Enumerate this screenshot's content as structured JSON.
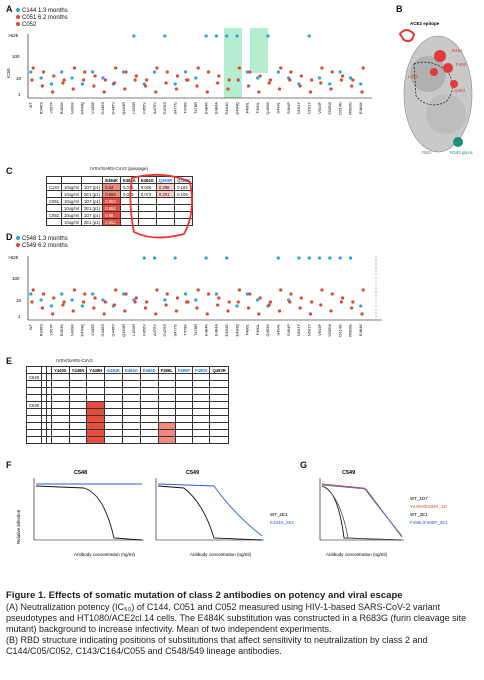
{
  "panels": {
    "A": {
      "letter": "A",
      "legend": [
        {
          "label": "C144",
          "color": "#2aa3e0",
          "note": "1.3 months"
        },
        {
          "label": "C051",
          "color": "#d94a2c",
          "note": "6.2 months"
        },
        {
          "label": "C052",
          "color": "#d94a2c",
          "note": ""
        }
      ],
      "y_ticks": [
        ">625",
        "100",
        "10",
        "1"
      ],
      "ylabel": "IC50"
    },
    "B": {
      "letter": "B",
      "labels": [
        "ACE2 epitope",
        "E484",
        "F490",
        "L455",
        "Q493",
        "N343 glyca",
        "RBD"
      ]
    },
    "C": {
      "letter": "C",
      "header_title": "rVSV/SARS-CoV2 (passage)",
      "columns": [
        "E484K",
        "E484A",
        "E484G",
        "Q493R",
        "Q493K"
      ],
      "groups": [
        "C144",
        "C051",
        "C052"
      ],
      "rows": [
        {
          "group": "C144",
          "conc": "10ug/ml",
          "passage": "1D7 (p1)",
          "vals": [
            "0.34",
            "0.018",
            "0.006",
            "0.398",
            "0.184"
          ]
        },
        {
          "group": "",
          "conc": "10ug/ml",
          "passage": "2E1 (p1)",
          "vals": [
            "0.568",
            "0.053",
            "0.072",
            "0.201",
            "0.106"
          ]
        },
        {
          "group": "C051",
          "conc": "10ug/ml",
          "passage": "1D7 (p1)",
          "vals": [
            "0.953",
            "",
            "",
            "",
            ""
          ]
        },
        {
          "group": "",
          "conc": "10ug/ml",
          "passage": "2E1 (p1)",
          "vals": [
            "0.952",
            "",
            "",
            "",
            ""
          ]
        },
        {
          "group": "C052",
          "conc": "10ug/ml",
          "passage": "1D7 (p1)",
          "vals": [
            "0.98",
            "",
            "",
            "",
            ""
          ]
        },
        {
          "group": "",
          "conc": "10ug/ml",
          "passage": "2E1 (p1)",
          "vals": [
            "0.952",
            "",
            "",
            "",
            ""
          ]
        }
      ]
    },
    "D": {
      "letter": "D",
      "legend": [
        {
          "label": "C548",
          "color": "#2aa3e0",
          "note": "1.3 months"
        },
        {
          "label": "C549",
          "color": "#d94a2c",
          "note": "6.2 months"
        }
      ],
      "y_ticks": [
        ">625",
        "100",
        "10",
        "1"
      ],
      "ylabel": "IC50"
    },
    "E": {
      "letter": "E",
      "header_title": "rVSV/SARS-CoV2",
      "columns": [
        "Y449S",
        "Y449N",
        "Y449H",
        "E484K",
        "E484A",
        "E484D",
        "F486L",
        "F490P",
        "F490S",
        "Q493R"
      ],
      "groups": [
        "C548",
        "C549"
      ]
    },
    "F": {
      "letter": "F",
      "plots": [
        {
          "title": "C548"
        },
        {
          "title": "C549"
        }
      ],
      "legend": [
        "WT_2E1",
        "E484K_2E1"
      ],
      "xlabel": "Antibody concentration (ng/ml)",
      "ylabel": "Relative infection"
    },
    "G": {
      "letter": "G",
      "plots": [
        {
          "title": "C549"
        }
      ],
      "legend": [
        "WT_1D7",
        "Y449H/E484K_1D",
        "WT_2E1",
        "F486L/F490P_2E1"
      ],
      "xlabel": "Antibody concentration (ng/ml)",
      "ylabel": "Relative infection"
    }
  },
  "x_mutations": [
    "WT",
    "R346S",
    "V367F",
    "R403K",
    "N439K",
    "K444Q",
    "V445E",
    "G446S",
    "G446V",
    "Q493R",
    "L455R",
    "F456V",
    "A475V",
    "G476S",
    "S477G",
    "T478K",
    "T478R",
    "E484K",
    "E484A",
    "E484G",
    "E484Q",
    "F486L",
    "F490L",
    "Q493K",
    "S494L",
    "S494P",
    "N501Y",
    "N501Y",
    "V503F",
    "Y505W",
    "D614G",
    "R683G",
    "E484K"
  ],
  "caption": {
    "title": "Figure 1. Effects of somatic mutation of class 2 antibodies on potency and viral escape",
    "para_a": "(A) Neutralization potency (IC₅₀) of C144, C051 and C052 measured using HIV-1-based SARS-CoV-2 variant pseudotypes and HT1080/ACE2cl.14 cells. The E484K substitution was constructed in a R683G (furin cleavage site mutant) background to increase infectivity. Mean of two independent experiments.",
    "para_b": "(B) RBD structure indicating positions of substitutions that affect sensitivity to neutralization by class 2 and C144/C05/C052, C143/C164/C055 and C548/549 lineage antibodies."
  }
}
